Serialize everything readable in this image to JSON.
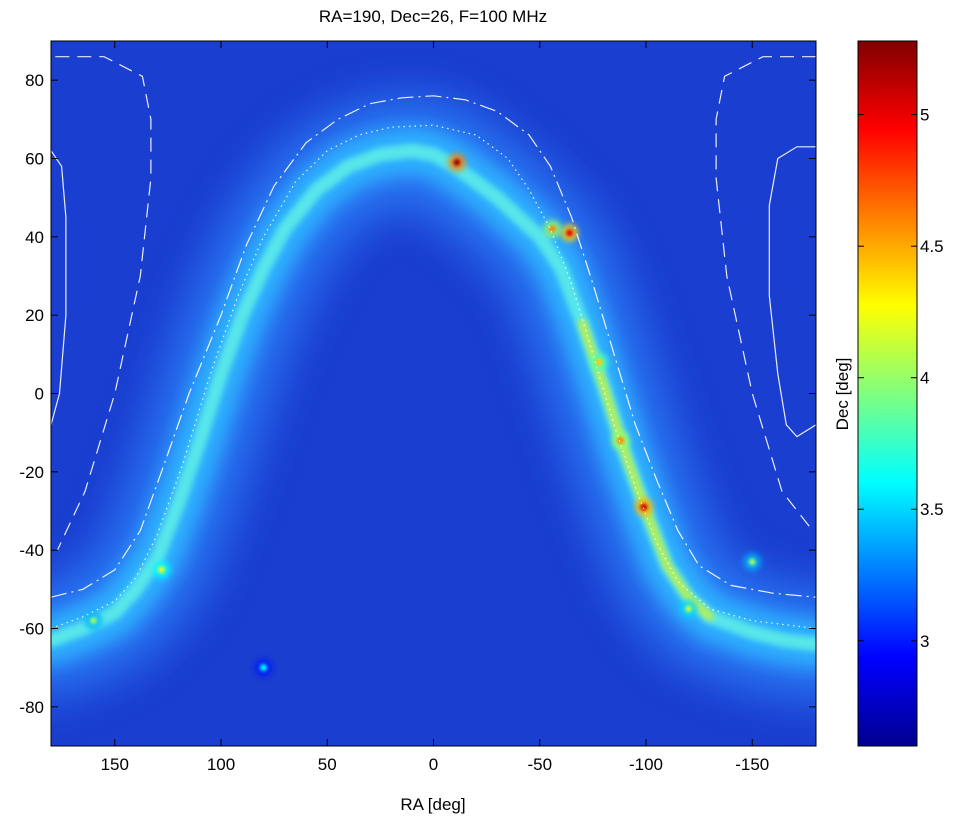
{
  "chart_data": {
    "type": "heatmap",
    "title": "RA=190, Dec=26, F=100 MHz",
    "xlabel": "RA [deg]",
    "ylabel": "",
    "colorbar_label": "Dec [deg]",
    "xlim": [
      180,
      -180
    ],
    "ylim": [
      -90,
      90
    ],
    "x_ticks": [
      150,
      100,
      50,
      0,
      -50,
      -100,
      -150
    ],
    "y_ticks": [
      80,
      60,
      40,
      20,
      0,
      -20,
      -40,
      -60,
      -80
    ],
    "colorbar_ticks": [
      5,
      4.5,
      4,
      3.5,
      3
    ],
    "colorbar_range": [
      2.6,
      5.28
    ],
    "colormap": "jet",
    "grid": false,
    "galactic_plane_ridge": [
      [
        180,
        -63
      ],
      [
        165,
        -60
      ],
      [
        150,
        -56
      ],
      [
        140,
        -50
      ],
      [
        130,
        -42
      ],
      [
        120,
        -28
      ],
      [
        110,
        -12
      ],
      [
        100,
        5
      ],
      [
        90,
        20
      ],
      [
        80,
        32
      ],
      [
        70,
        42
      ],
      [
        55,
        52
      ],
      [
        40,
        58
      ],
      [
        25,
        61
      ],
      [
        10,
        62
      ],
      [
        0,
        61
      ],
      [
        -10,
        58
      ],
      [
        -20,
        54
      ],
      [
        -30,
        50
      ],
      [
        -40,
        45
      ],
      [
        -50,
        40
      ],
      [
        -60,
        32
      ],
      [
        -70,
        18
      ],
      [
        -80,
        2
      ],
      [
        -90,
        -15
      ],
      [
        -100,
        -30
      ],
      [
        -110,
        -44
      ],
      [
        -120,
        -52
      ],
      [
        -130,
        -57
      ],
      [
        -150,
        -61
      ],
      [
        -165,
        -63
      ],
      [
        -180,
        -64
      ]
    ],
    "overlay_contours": [
      {
        "style": "dash-dot",
        "points": [
          [
            180,
            -52
          ],
          [
            165,
            -50
          ],
          [
            150,
            -45
          ],
          [
            138,
            -35
          ],
          [
            128,
            -20
          ],
          [
            115,
            0
          ],
          [
            100,
            20
          ],
          [
            88,
            38
          ],
          [
            75,
            53
          ],
          [
            60,
            64
          ],
          [
            45,
            70
          ],
          [
            30,
            74
          ],
          [
            15,
            75.5
          ],
          [
            0,
            76
          ],
          [
            -15,
            75
          ],
          [
            -30,
            72
          ],
          [
            -45,
            66
          ],
          [
            -55,
            58
          ],
          [
            -65,
            45
          ],
          [
            -75,
            28
          ],
          [
            -85,
            10
          ],
          [
            -95,
            -8
          ],
          [
            -105,
            -22
          ],
          [
            -115,
            -35
          ],
          [
            -125,
            -44
          ],
          [
            -140,
            -49
          ],
          [
            -160,
            -51
          ],
          [
            -180,
            -52
          ]
        ]
      },
      {
        "style": "dotted",
        "points": [
          [
            180,
            -60
          ],
          [
            165,
            -57
          ],
          [
            150,
            -53
          ],
          [
            140,
            -47
          ],
          [
            130,
            -36
          ],
          [
            118,
            -18
          ],
          [
            105,
            5
          ],
          [
            92,
            25
          ],
          [
            80,
            40
          ],
          [
            65,
            54
          ],
          [
            50,
            62
          ],
          [
            35,
            66
          ],
          [
            20,
            68
          ],
          [
            0,
            68.5
          ],
          [
            -20,
            66
          ],
          [
            -35,
            60
          ],
          [
            -45,
            52
          ],
          [
            -55,
            42
          ],
          [
            -65,
            28
          ],
          [
            -75,
            10
          ],
          [
            -85,
            -8
          ],
          [
            -95,
            -24
          ],
          [
            -105,
            -38
          ],
          [
            -115,
            -48
          ],
          [
            -130,
            -55
          ],
          [
            -150,
            -58
          ],
          [
            -180,
            -60
          ]
        ]
      },
      {
        "style": "dashed",
        "points": [
          [
            178,
            86
          ],
          [
            155,
            86
          ],
          [
            137,
            81
          ],
          [
            133,
            70
          ],
          [
            133,
            55
          ],
          [
            138,
            30
          ],
          [
            150,
            0
          ],
          [
            164,
            -25
          ],
          [
            177,
            -40
          ]
        ]
      },
      {
        "style": "dashed",
        "points": [
          [
            -180,
            86
          ],
          [
            -155,
            86
          ],
          [
            -137,
            81
          ],
          [
            -133,
            70
          ],
          [
            -133,
            55
          ],
          [
            -138,
            30
          ],
          [
            -150,
            0
          ],
          [
            -164,
            -25
          ],
          [
            -177,
            -34
          ]
        ]
      },
      {
        "style": "solid",
        "points": [
          [
            180,
            62
          ],
          [
            175,
            58
          ],
          [
            173,
            45
          ],
          [
            173,
            20
          ],
          [
            176,
            0
          ],
          [
            180,
            -8
          ]
        ]
      },
      {
        "style": "solid",
        "points": [
          [
            -180,
            63
          ],
          [
            -171,
            63
          ],
          [
            -162,
            60
          ],
          [
            -158,
            48
          ],
          [
            -158,
            25
          ],
          [
            -162,
            5
          ],
          [
            -166,
            -8
          ],
          [
            -171,
            -11
          ],
          [
            -180,
            -8
          ]
        ]
      }
    ],
    "hotspots": [
      {
        "ra": -11,
        "dec": 59,
        "value": 5.2
      },
      {
        "ra": -64,
        "dec": 41,
        "value": 5.0
      },
      {
        "ra": -56,
        "dec": 42,
        "value": 4.6
      },
      {
        "ra": -99,
        "dec": -29,
        "value": 5.1
      },
      {
        "ra": -88,
        "dec": -12,
        "value": 4.6
      },
      {
        "ra": -78,
        "dec": 8,
        "value": 4.4
      },
      {
        "ra": 128,
        "dec": -45,
        "value": 4.2
      },
      {
        "ra": 160,
        "dec": -58,
        "value": 4.0
      },
      {
        "ra": -150,
        "dec": -43,
        "value": 4.0
      },
      {
        "ra": -120,
        "dec": -55,
        "value": 4.1
      },
      {
        "ra": 80,
        "dec": -70,
        "value": 3.6
      }
    ]
  }
}
